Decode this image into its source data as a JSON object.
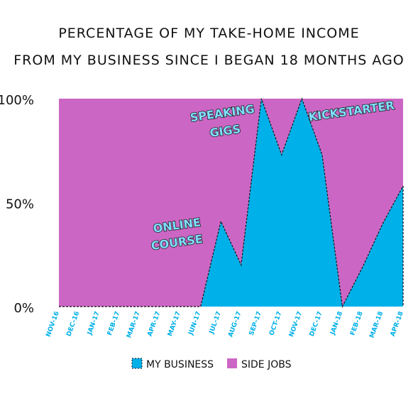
{
  "title_line1": "PERCENTAGE OF MY TAKE-HOME INCOME",
  "title_line2": "FROM MY BUSINESS SINCE I BEGAN 18 MONTHS AGO",
  "colors": {
    "business": "#00b0e8",
    "side_jobs": "#cc66c4",
    "axis_label": "#00b0e8"
  },
  "annotations": [
    "ONLINE",
    "COURSE",
    "SPEAKING",
    "GIGS",
    "KICKSTARTER"
  ],
  "chart_data": {
    "type": "area",
    "stacked": true,
    "x": [
      "NOV-16",
      "DEC-16",
      "JAN-17",
      "FEB-17",
      "MAR-17",
      "APR-17",
      "MAY-17",
      "JUN-17",
      "JUL-17",
      "AUG-17",
      "SEP-17",
      "OCT-17",
      "NOV-17",
      "DEC-17",
      "JAN-18",
      "FEB-18",
      "MAR-18",
      "APR-18"
    ],
    "series": [
      {
        "name": "MY BUSINESS",
        "values": [
          0,
          0,
          0,
          0,
          0,
          0,
          0,
          0,
          41,
          20,
          100,
          73,
          100,
          73,
          0,
          19,
          40,
          58
        ]
      },
      {
        "name": "SIDE JOBS",
        "values": [
          100,
          100,
          100,
          100,
          100,
          100,
          100,
          100,
          59,
          80,
          0,
          27,
          0,
          27,
          100,
          81,
          60,
          42
        ]
      }
    ],
    "yticks": [
      "100%",
      "50%",
      "0%"
    ],
    "ylim": [
      0,
      100
    ],
    "legend": "bottom",
    "grid": false
  }
}
